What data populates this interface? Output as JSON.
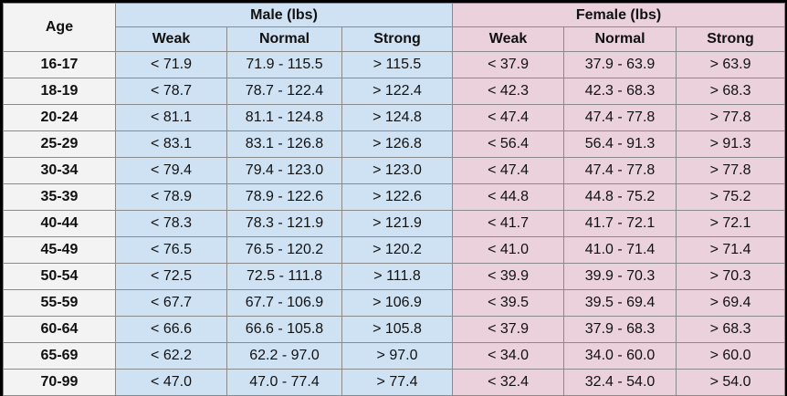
{
  "header": {
    "age_label": "Age",
    "male_label": "Male (lbs)",
    "female_label": "Female (lbs)",
    "male_sub": [
      "Weak",
      "Normal",
      "Strong"
    ],
    "female_sub": [
      "Weak",
      "Normal",
      "Strong"
    ]
  },
  "rows": [
    {
      "age": "16-17",
      "m_weak": "< 71.9",
      "m_normal": "71.9 - 115.5",
      "m_strong": "> 115.5",
      "f_weak": "< 37.9",
      "f_normal": "37.9 - 63.9",
      "f_strong": "> 63.9"
    },
    {
      "age": "18-19",
      "m_weak": "< 78.7",
      "m_normal": "78.7 - 122.4",
      "m_strong": "> 122.4",
      "f_weak": "< 42.3",
      "f_normal": "42.3 - 68.3",
      "f_strong": "> 68.3"
    },
    {
      "age": "20-24",
      "m_weak": "< 81.1",
      "m_normal": "81.1 - 124.8",
      "m_strong": "> 124.8",
      "f_weak": "< 47.4",
      "f_normal": "47.4 - 77.8",
      "f_strong": "> 77.8"
    },
    {
      "age": "25-29",
      "m_weak": "< 83.1",
      "m_normal": "83.1 - 126.8",
      "m_strong": "> 126.8",
      "f_weak": "< 56.4",
      "f_normal": "56.4 - 91.3",
      "f_strong": "> 91.3"
    },
    {
      "age": "30-34",
      "m_weak": "< 79.4",
      "m_normal": "79.4 - 123.0",
      "m_strong": "> 123.0",
      "f_weak": "< 47.4",
      "f_normal": "47.4 - 77.8",
      "f_strong": "> 77.8"
    },
    {
      "age": "35-39",
      "m_weak": "< 78.9",
      "m_normal": "78.9 - 122.6",
      "m_strong": "> 122.6",
      "f_weak": "< 44.8",
      "f_normal": "44.8 - 75.2",
      "f_strong": "> 75.2"
    },
    {
      "age": "40-44",
      "m_weak": "< 78.3",
      "m_normal": "78.3 - 121.9",
      "m_strong": "> 121.9",
      "f_weak": "< 41.7",
      "f_normal": "41.7 - 72.1",
      "f_strong": "> 72.1"
    },
    {
      "age": "45-49",
      "m_weak": "< 76.5",
      "m_normal": "76.5 - 120.2",
      "m_strong": "> 120.2",
      "f_weak": "< 41.0",
      "f_normal": "41.0 - 71.4",
      "f_strong": "> 71.4"
    },
    {
      "age": "50-54",
      "m_weak": "< 72.5",
      "m_normal": "72.5 - 111.8",
      "m_strong": "> 111.8",
      "f_weak": "< 39.9",
      "f_normal": "39.9 - 70.3",
      "f_strong": "> 70.3"
    },
    {
      "age": "55-59",
      "m_weak": "< 67.7",
      "m_normal": "67.7 - 106.9",
      "m_strong": "> 106.9",
      "f_weak": "< 39.5",
      "f_normal": "39.5 - 69.4",
      "f_strong": "> 69.4"
    },
    {
      "age": "60-64",
      "m_weak": "< 66.6",
      "m_normal": "66.6 - 105.8",
      "m_strong": "> 105.8",
      "f_weak": "< 37.9",
      "f_normal": "37.9 - 68.3",
      "f_strong": "> 68.3"
    },
    {
      "age": "65-69",
      "m_weak": "< 62.2",
      "m_normal": "62.2 - 97.0",
      "m_strong": "> 97.0",
      "f_weak": "< 34.0",
      "f_normal": "34.0 - 60.0",
      "f_strong": "> 60.0"
    },
    {
      "age": "70-99",
      "m_weak": "< 47.0",
      "m_normal": "47.0 - 77.4",
      "m_strong": "> 77.4",
      "f_weak": "< 32.4",
      "f_normal": "32.4 - 54.0",
      "f_strong": "> 54.0"
    }
  ],
  "colors": {
    "male_bg": "#cfe2f3",
    "female_bg": "#ead1dc",
    "age_bg": "#f3f3f3",
    "border": "#8a8a8a",
    "frame": "#000000"
  }
}
